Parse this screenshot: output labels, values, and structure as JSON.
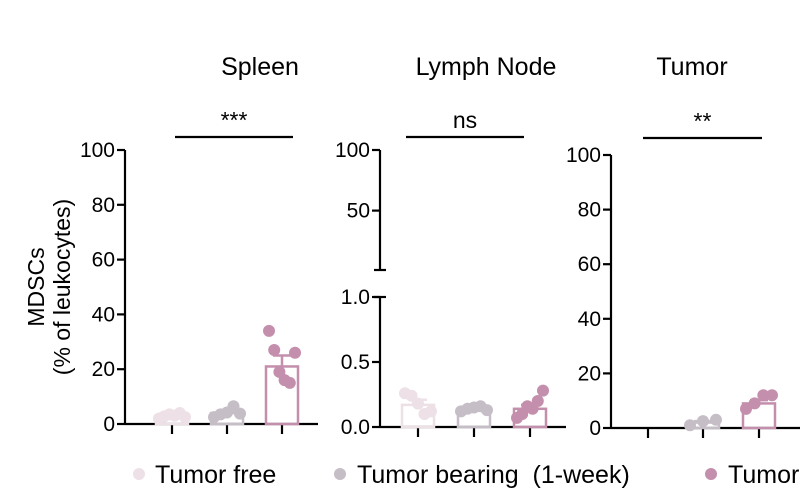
{
  "chart_data": {
    "type": "bar",
    "ylabel_line1": "MDSCs",
    "ylabel_line2": "(% of leukocytes)",
    "legend": [
      {
        "label": "Tumor free",
        "color": "#ede0e6"
      },
      {
        "label": "Tumor bearing  (1-week)",
        "color": "#c6bec6"
      },
      {
        "label": "Tumor",
        "color": "#c48fac"
      }
    ],
    "panels": [
      {
        "title": "Spleen",
        "significance": "***",
        "ylim": [
          0,
          100
        ],
        "yticks": [
          0,
          20,
          40,
          60,
          80,
          100
        ],
        "ytick_labels": [
          "0",
          "20",
          "40",
          "60",
          "80",
          "100"
        ],
        "groups": [
          {
            "mean": 3.0,
            "sem": 0.6,
            "points": [
              2.0,
              2.8,
              3.5,
              3.0,
              4.0,
              2.5
            ]
          },
          {
            "mean": 4.0,
            "sem": 0.7,
            "points": [
              2.5,
              3.5,
              4.2,
              6.5,
              3.8
            ]
          },
          {
            "mean": 21.0,
            "sem": 4.0,
            "points": [
              34.0,
              27.0,
              19.0,
              16.0,
              15.0,
              26.0
            ]
          }
        ]
      },
      {
        "title": "Lymph Node",
        "significance": "ns",
        "broken_axis": true,
        "ylim_lower": [
          0,
          1.0
        ],
        "ylim_upper": [
          1.0,
          100
        ],
        "ytick_labels_lower": [
          "0.0",
          "0.5",
          "1.0"
        ],
        "ytick_labels_upper": [
          "50",
          "100"
        ],
        "groups": [
          {
            "mean": 0.17,
            "sem": 0.04,
            "points": [
              0.26,
              0.24,
              0.18,
              0.1,
              0.12
            ]
          },
          {
            "mean": 0.14,
            "sem": 0.01,
            "points": [
              0.12,
              0.14,
              0.15,
              0.16,
              0.13
            ]
          },
          {
            "mean": 0.14,
            "sem": 0.03,
            "points": [
              0.07,
              0.1,
              0.16,
              0.14,
              0.2,
              0.28
            ]
          }
        ]
      },
      {
        "title": "Tumor",
        "significance": "**",
        "ylim": [
          0,
          100
        ],
        "yticks": [
          0,
          20,
          40,
          60,
          80,
          100
        ],
        "ytick_labels": [
          "0",
          "20",
          "40",
          "60",
          "80",
          "100"
        ],
        "groups": [
          {
            "mean": null,
            "sem": null,
            "points": []
          },
          {
            "mean": 2.0,
            "sem": 0.5,
            "points": [
              1.0,
              2.5,
              3.0
            ]
          },
          {
            "mean": 9.0,
            "sem": 1.2,
            "points": [
              7.0,
              9.0,
              12.0,
              12.0
            ]
          }
        ]
      }
    ]
  }
}
